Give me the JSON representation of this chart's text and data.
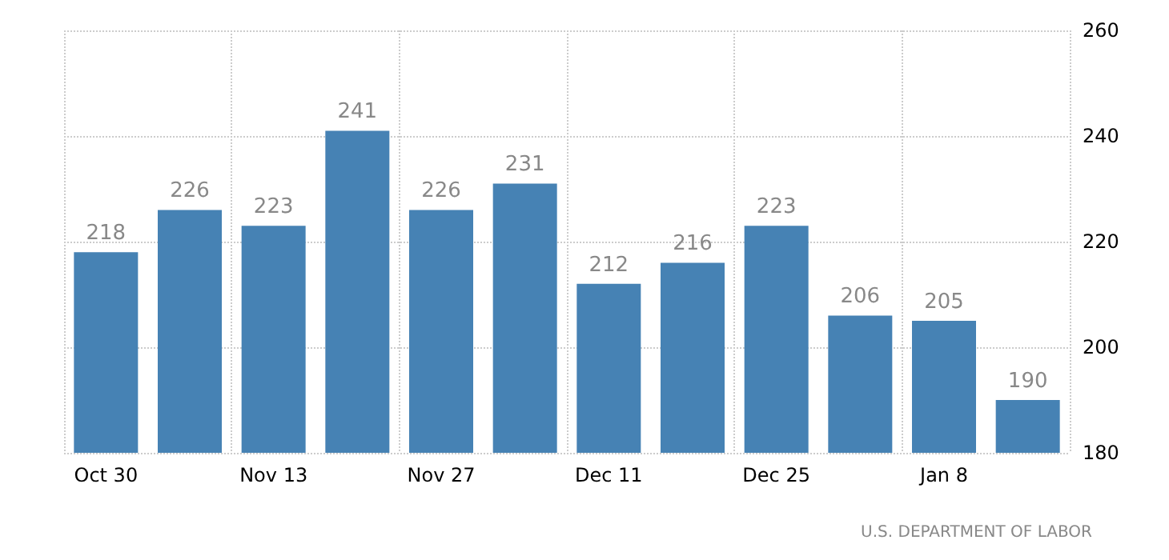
{
  "chart_data": {
    "type": "bar",
    "categories": [
      "Oct 30",
      null,
      "Nov 13",
      null,
      "Nov 27",
      null,
      "Dec 11",
      null,
      "Dec 25",
      null,
      "Jan 8",
      null
    ],
    "values": [
      218,
      226,
      223,
      241,
      226,
      231,
      212,
      216,
      223,
      206,
      205,
      190
    ],
    "color": "#4682b4",
    "data_labels": true,
    "ylim": [
      180,
      260
    ],
    "yticks": [
      180,
      200,
      220,
      240,
      260
    ],
    "grid": true,
    "annotations": [
      "U.S. DEPARTMENT OF LABOR"
    ]
  }
}
